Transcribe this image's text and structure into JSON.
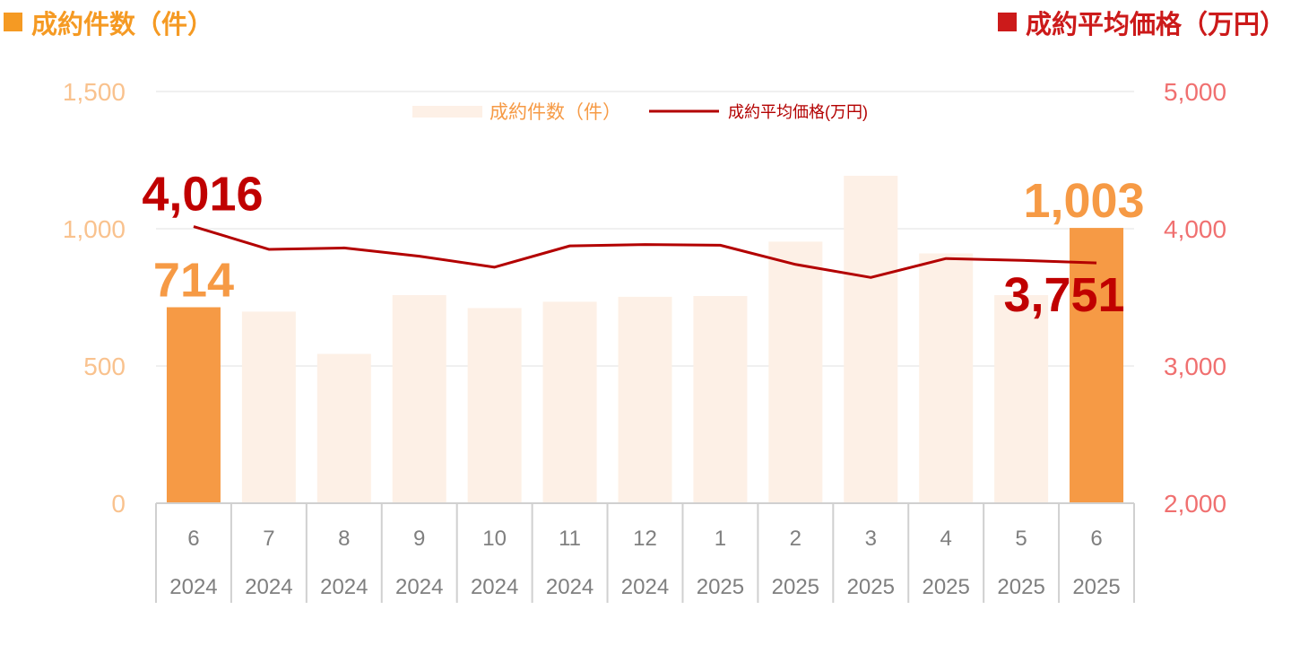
{
  "header": {
    "left_title": "成約件数（件）",
    "right_title": "成約平均価格（万円）"
  },
  "colors": {
    "bar_highlight": "#f69a45",
    "bar_faded": "#fdf0e6",
    "line": "#b30000",
    "left_axis_text": "#f9c28e",
    "right_axis_text": "#f07070",
    "left_title": "#f59a23",
    "right_title": "#cc1a1a",
    "grid": "#e0e0e0",
    "category_text": "#7f7f7f"
  },
  "chart_data": {
    "type": "bar",
    "categories": [
      "6",
      "7",
      "8",
      "9",
      "10",
      "11",
      "12",
      "1",
      "2",
      "3",
      "4",
      "5",
      "6"
    ],
    "category_years": [
      "2024",
      "2024",
      "2024",
      "2024",
      "2024",
      "2024",
      "2024",
      "2025",
      "2025",
      "2025",
      "2025",
      "2025",
      "2025"
    ],
    "series": [
      {
        "name": "成約件数（件）",
        "type": "bar",
        "axis": "left",
        "values": [
          714,
          698,
          544,
          758,
          711,
          734,
          752,
          755,
          953,
          1193,
          910,
          758,
          1003
        ],
        "highlight_indices": [
          0,
          12
        ]
      },
      {
        "name": "成約平均価格(万円)",
        "type": "line",
        "axis": "right",
        "values": [
          4016,
          3850,
          3860,
          3800,
          3720,
          3875,
          3885,
          3880,
          3740,
          3645,
          3783,
          3770,
          3751
        ]
      }
    ],
    "y_left": {
      "min": 0,
      "max": 1500,
      "ticks": [
        0,
        500,
        1000,
        1500
      ],
      "tick_labels": [
        "0",
        "500",
        "1,000",
        "1,500"
      ]
    },
    "y_right": {
      "min": 2000,
      "max": 5000,
      "ticks": [
        2000,
        3000,
        4000,
        5000
      ],
      "tick_labels": [
        "2,000",
        "3,000",
        "4,000",
        "5,000"
      ]
    },
    "annotations": [
      {
        "text": "714",
        "series": 0,
        "index": 0
      },
      {
        "text": "1,003",
        "series": 0,
        "index": 12
      },
      {
        "text": "4,016",
        "series": 1,
        "index": 0
      },
      {
        "text": "3,751",
        "series": 1,
        "index": 12
      }
    ],
    "legend": {
      "position": "top-center",
      "entries": [
        "成約件数（件）",
        "成約平均価格(万円)"
      ]
    },
    "grid": true
  }
}
